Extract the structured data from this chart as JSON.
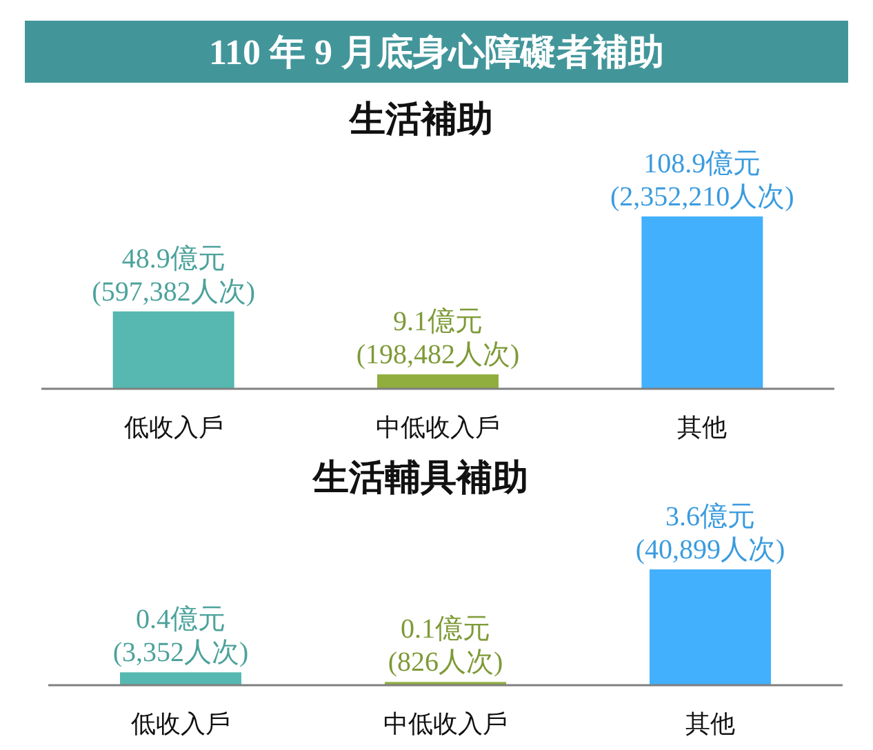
{
  "chart_data": [
    {
      "type": "bar",
      "title": "110 年 9 月底身心障礙者補助",
      "subtitle": "生活補助",
      "categories": [
        "低收入戶",
        "中低收入戶",
        "其他"
      ],
      "values": [
        48.9,
        9.1,
        108.9
      ],
      "colors": [
        "#56b8b0",
        "#8fae3e",
        "#42b0fc"
      ],
      "value_labels": [
        "48.9億元\n(597,382人次)",
        "9.1億元\n(198,482人次)",
        "108.9億元\n(2,352,210人次)"
      ]
    },
    {
      "type": "bar",
      "title": "生活輔具補助",
      "categories": [
        "低收入戶",
        "中低收入戶",
        "其他"
      ],
      "values": [
        0.4,
        0.1,
        3.6
      ],
      "colors": [
        "#56b8b0",
        "#8fae3e",
        "#42b0fc"
      ],
      "value_labels": [
        "0.4億元\n(3,352人次)",
        "0.1億元\n(826人次)",
        "3.6億元\n(40,899人次)"
      ]
    }
  ]
}
